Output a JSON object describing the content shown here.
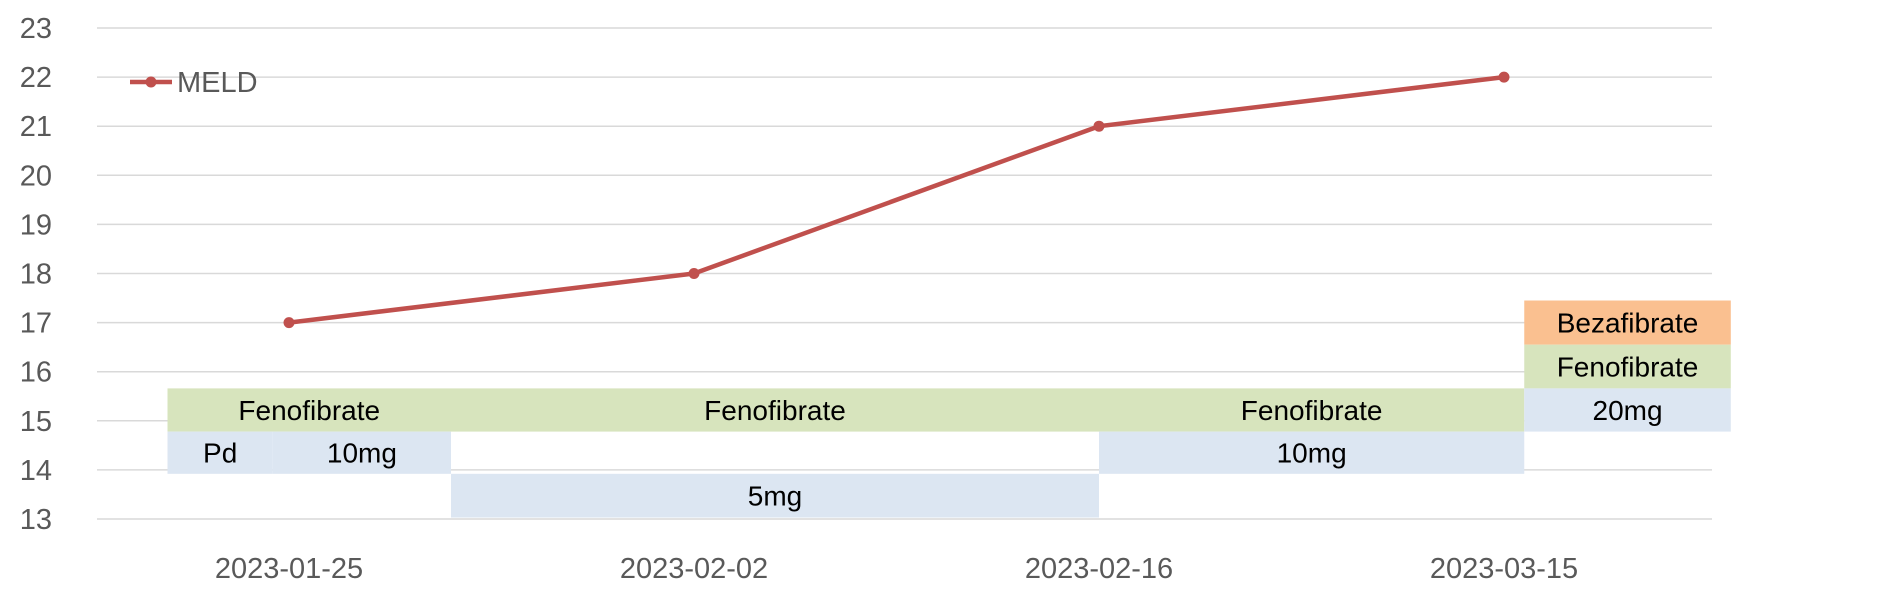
{
  "chart_data": {
    "type": "line",
    "title": "",
    "xlabel": "",
    "ylabel": "",
    "categories": [
      "2023-01-25",
      "2023-02-02",
      "2023-02-16",
      "2023-03-15"
    ],
    "series": [
      {
        "name": "MELD",
        "values": [
          17,
          18,
          21,
          22
        ],
        "color": "#C0504D"
      }
    ],
    "yticks": [
      13,
      14,
      15,
      16,
      17,
      18,
      19,
      20,
      21,
      22,
      23
    ],
    "ylim": [
      13,
      23
    ],
    "grid": true,
    "legend": "top-left",
    "annotations": [
      {
        "label": "Fenofibrate",
        "x_from": 0.7,
        "x_to": 1.4,
        "y_from": 14.78,
        "y_to": 15.66,
        "color": "#D7E4BD"
      },
      {
        "label": "Fenofibrate",
        "x_from": 1.4,
        "x_to": 3.0,
        "y_from": 14.78,
        "y_to": 15.66,
        "color": "#D7E4BD"
      },
      {
        "label": "Fenofibrate",
        "x_from": 3.0,
        "x_to": 4.05,
        "y_from": 14.78,
        "y_to": 15.66,
        "color": "#D7E4BD"
      },
      {
        "label": "Pd",
        "x_from": 0.7,
        "x_to": 0.96,
        "y_from": 13.92,
        "y_to": 14.78,
        "color": "#DCE6F2"
      },
      {
        "label": "10mg",
        "x_from": 0.96,
        "x_to": 1.4,
        "y_from": 13.92,
        "y_to": 14.78,
        "color": "#DCE6F2"
      },
      {
        "label": "5mg",
        "x_from": 1.4,
        "x_to": 3.0,
        "y_from": 13.03,
        "y_to": 13.92,
        "color": "#DCE6F2"
      },
      {
        "label": "10mg",
        "x_from": 3.0,
        "x_to": 4.05,
        "y_from": 13.92,
        "y_to": 14.78,
        "color": "#DCE6F2"
      },
      {
        "label": "Bezafibrate",
        "x_from": 4.05,
        "x_to": 4.56,
        "y_from": 16.55,
        "y_to": 17.45,
        "color": "#FAC090"
      },
      {
        "label": "Fenofibrate",
        "x_from": 4.05,
        "x_to": 4.56,
        "y_from": 15.66,
        "y_to": 16.55,
        "color": "#D7E4BD"
      },
      {
        "label": "20mg",
        "x_from": 4.05,
        "x_to": 4.56,
        "y_from": 14.78,
        "y_to": 15.66,
        "color": "#DCE6F2"
      }
    ]
  }
}
